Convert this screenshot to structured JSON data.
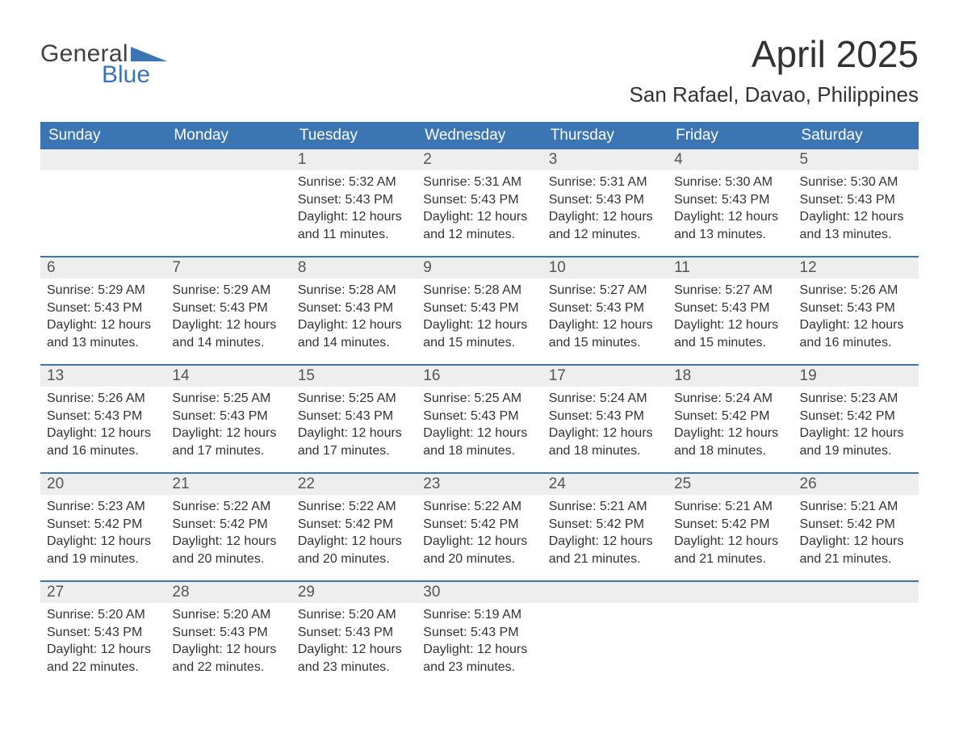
{
  "logo": {
    "word1": "General",
    "word2": "Blue"
  },
  "title": "April 2025",
  "location": "San Rafael, Davao, Philippines",
  "colors": {
    "brand_blue": "#3b75b4",
    "header_text": "#ffffff",
    "daynum_bg": "#eeeeee",
    "body_text": "#333333"
  },
  "days_of_week": [
    "Sunday",
    "Monday",
    "Tuesday",
    "Wednesday",
    "Thursday",
    "Friday",
    "Saturday"
  ],
  "weeks": [
    [
      null,
      null,
      {
        "n": "1",
        "sr": "Sunrise: 5:32 AM",
        "ss": "Sunset: 5:43 PM",
        "d1": "Daylight: 12 hours",
        "d2": "and 11 minutes."
      },
      {
        "n": "2",
        "sr": "Sunrise: 5:31 AM",
        "ss": "Sunset: 5:43 PM",
        "d1": "Daylight: 12 hours",
        "d2": "and 12 minutes."
      },
      {
        "n": "3",
        "sr": "Sunrise: 5:31 AM",
        "ss": "Sunset: 5:43 PM",
        "d1": "Daylight: 12 hours",
        "d2": "and 12 minutes."
      },
      {
        "n": "4",
        "sr": "Sunrise: 5:30 AM",
        "ss": "Sunset: 5:43 PM",
        "d1": "Daylight: 12 hours",
        "d2": "and 13 minutes."
      },
      {
        "n": "5",
        "sr": "Sunrise: 5:30 AM",
        "ss": "Sunset: 5:43 PM",
        "d1": "Daylight: 12 hours",
        "d2": "and 13 minutes."
      }
    ],
    [
      {
        "n": "6",
        "sr": "Sunrise: 5:29 AM",
        "ss": "Sunset: 5:43 PM",
        "d1": "Daylight: 12 hours",
        "d2": "and 13 minutes."
      },
      {
        "n": "7",
        "sr": "Sunrise: 5:29 AM",
        "ss": "Sunset: 5:43 PM",
        "d1": "Daylight: 12 hours",
        "d2": "and 14 minutes."
      },
      {
        "n": "8",
        "sr": "Sunrise: 5:28 AM",
        "ss": "Sunset: 5:43 PM",
        "d1": "Daylight: 12 hours",
        "d2": "and 14 minutes."
      },
      {
        "n": "9",
        "sr": "Sunrise: 5:28 AM",
        "ss": "Sunset: 5:43 PM",
        "d1": "Daylight: 12 hours",
        "d2": "and 15 minutes."
      },
      {
        "n": "10",
        "sr": "Sunrise: 5:27 AM",
        "ss": "Sunset: 5:43 PM",
        "d1": "Daylight: 12 hours",
        "d2": "and 15 minutes."
      },
      {
        "n": "11",
        "sr": "Sunrise: 5:27 AM",
        "ss": "Sunset: 5:43 PM",
        "d1": "Daylight: 12 hours",
        "d2": "and 15 minutes."
      },
      {
        "n": "12",
        "sr": "Sunrise: 5:26 AM",
        "ss": "Sunset: 5:43 PM",
        "d1": "Daylight: 12 hours",
        "d2": "and 16 minutes."
      }
    ],
    [
      {
        "n": "13",
        "sr": "Sunrise: 5:26 AM",
        "ss": "Sunset: 5:43 PM",
        "d1": "Daylight: 12 hours",
        "d2": "and 16 minutes."
      },
      {
        "n": "14",
        "sr": "Sunrise: 5:25 AM",
        "ss": "Sunset: 5:43 PM",
        "d1": "Daylight: 12 hours",
        "d2": "and 17 minutes."
      },
      {
        "n": "15",
        "sr": "Sunrise: 5:25 AM",
        "ss": "Sunset: 5:43 PM",
        "d1": "Daylight: 12 hours",
        "d2": "and 17 minutes."
      },
      {
        "n": "16",
        "sr": "Sunrise: 5:25 AM",
        "ss": "Sunset: 5:43 PM",
        "d1": "Daylight: 12 hours",
        "d2": "and 18 minutes."
      },
      {
        "n": "17",
        "sr": "Sunrise: 5:24 AM",
        "ss": "Sunset: 5:43 PM",
        "d1": "Daylight: 12 hours",
        "d2": "and 18 minutes."
      },
      {
        "n": "18",
        "sr": "Sunrise: 5:24 AM",
        "ss": "Sunset: 5:42 PM",
        "d1": "Daylight: 12 hours",
        "d2": "and 18 minutes."
      },
      {
        "n": "19",
        "sr": "Sunrise: 5:23 AM",
        "ss": "Sunset: 5:42 PM",
        "d1": "Daylight: 12 hours",
        "d2": "and 19 minutes."
      }
    ],
    [
      {
        "n": "20",
        "sr": "Sunrise: 5:23 AM",
        "ss": "Sunset: 5:42 PM",
        "d1": "Daylight: 12 hours",
        "d2": "and 19 minutes."
      },
      {
        "n": "21",
        "sr": "Sunrise: 5:22 AM",
        "ss": "Sunset: 5:42 PM",
        "d1": "Daylight: 12 hours",
        "d2": "and 20 minutes."
      },
      {
        "n": "22",
        "sr": "Sunrise: 5:22 AM",
        "ss": "Sunset: 5:42 PM",
        "d1": "Daylight: 12 hours",
        "d2": "and 20 minutes."
      },
      {
        "n": "23",
        "sr": "Sunrise: 5:22 AM",
        "ss": "Sunset: 5:42 PM",
        "d1": "Daylight: 12 hours",
        "d2": "and 20 minutes."
      },
      {
        "n": "24",
        "sr": "Sunrise: 5:21 AM",
        "ss": "Sunset: 5:42 PM",
        "d1": "Daylight: 12 hours",
        "d2": "and 21 minutes."
      },
      {
        "n": "25",
        "sr": "Sunrise: 5:21 AM",
        "ss": "Sunset: 5:42 PM",
        "d1": "Daylight: 12 hours",
        "d2": "and 21 minutes."
      },
      {
        "n": "26",
        "sr": "Sunrise: 5:21 AM",
        "ss": "Sunset: 5:42 PM",
        "d1": "Daylight: 12 hours",
        "d2": "and 21 minutes."
      }
    ],
    [
      {
        "n": "27",
        "sr": "Sunrise: 5:20 AM",
        "ss": "Sunset: 5:43 PM",
        "d1": "Daylight: 12 hours",
        "d2": "and 22 minutes."
      },
      {
        "n": "28",
        "sr": "Sunrise: 5:20 AM",
        "ss": "Sunset: 5:43 PM",
        "d1": "Daylight: 12 hours",
        "d2": "and 22 minutes."
      },
      {
        "n": "29",
        "sr": "Sunrise: 5:20 AM",
        "ss": "Sunset: 5:43 PM",
        "d1": "Daylight: 12 hours",
        "d2": "and 23 minutes."
      },
      {
        "n": "30",
        "sr": "Sunrise: 5:19 AM",
        "ss": "Sunset: 5:43 PM",
        "d1": "Daylight: 12 hours",
        "d2": "and 23 minutes."
      },
      null,
      null,
      null
    ]
  ]
}
